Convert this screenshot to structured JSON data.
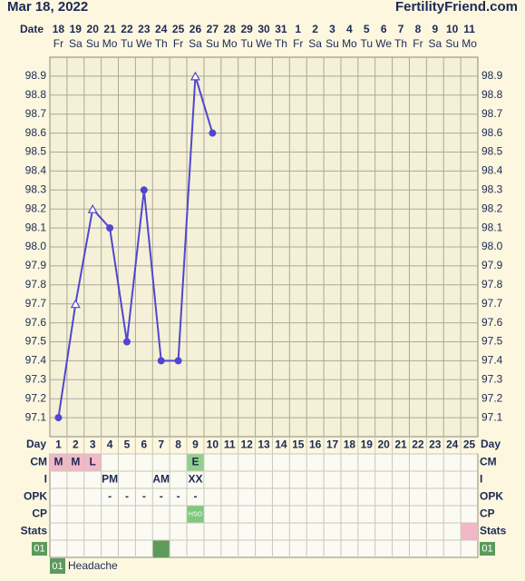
{
  "header": {
    "date": "Mar 18, 2022",
    "site": "FertilityFriend.com"
  },
  "chart_data": {
    "type": "line",
    "date_label": "Date",
    "categories": [
      "18",
      "19",
      "20",
      "21",
      "22",
      "23",
      "24",
      "25",
      "26",
      "27",
      "28",
      "29",
      "30",
      "31",
      "1",
      "2",
      "3",
      "4",
      "5",
      "6",
      "7",
      "8",
      "9",
      "10",
      "11"
    ],
    "weekdays": [
      "Fr",
      "Sa",
      "Su",
      "Mo",
      "Tu",
      "We",
      "Th",
      "Fr",
      "Sa",
      "Su",
      "Mo",
      "Tu",
      "We",
      "Th",
      "Fr",
      "Sa",
      "Su",
      "Mo",
      "Tu",
      "We",
      "Th",
      "Fr",
      "Sa",
      "Su",
      "Mo"
    ],
    "values": [
      97.1,
      97.7,
      98.2,
      98.1,
      97.5,
      98.3,
      97.4,
      97.4,
      98.9,
      98.6,
      null,
      null,
      null,
      null,
      null,
      null,
      null,
      null,
      null,
      null,
      null,
      null,
      null,
      null,
      null
    ],
    "markers": [
      "dot",
      "triangle",
      "triangle",
      "dot",
      "dot",
      "dot",
      "dot",
      "dot",
      "triangle",
      "dot",
      null,
      null,
      null,
      null,
      null,
      null,
      null,
      null,
      null,
      null,
      null,
      null,
      null,
      null,
      null
    ],
    "color": "#5146d0",
    "ylim": [
      97.0,
      99.0
    ],
    "yticks": [
      97.1,
      97.2,
      97.3,
      97.4,
      97.5,
      97.6,
      97.7,
      97.8,
      97.9,
      {
        "value": 98,
        "label": "98.0"
      },
      98.1,
      98.2,
      98.3,
      98.4,
      98.5,
      98.6,
      98.7,
      98.8,
      98.9
    ],
    "grid": true
  },
  "table": {
    "day_label": "Day",
    "days": [
      1,
      2,
      3,
      4,
      5,
      6,
      7,
      8,
      9,
      10,
      11,
      12,
      13,
      14,
      15,
      16,
      17,
      18,
      19,
      20,
      21,
      22,
      23,
      24,
      25
    ],
    "rows": [
      {
        "label": "CM",
        "cells": [
          {
            "text": "M",
            "color": "#f2b8c8"
          },
          {
            "text": "M",
            "color": "#f2b8c8"
          },
          {
            "text": "L",
            "color": "#f2b8c8"
          },
          null,
          null,
          null,
          null,
          null,
          {
            "text": "E",
            "color": "#8fd08f"
          },
          null,
          null,
          null,
          null,
          null,
          null,
          null,
          null,
          null,
          null,
          null,
          null,
          null,
          null,
          null,
          null
        ]
      },
      {
        "label": "I",
        "cells": [
          null,
          null,
          null,
          {
            "text": "PM"
          },
          null,
          null,
          {
            "text": "AM"
          },
          null,
          {
            "text": "XX"
          },
          null,
          null,
          null,
          null,
          null,
          null,
          null,
          null,
          null,
          null,
          null,
          null,
          null,
          null,
          null,
          null
        ]
      },
      {
        "label": "OPK",
        "cells": [
          null,
          null,
          null,
          {
            "text": "-"
          },
          {
            "text": "-"
          },
          {
            "text": "-"
          },
          {
            "text": "-"
          },
          {
            "text": "-"
          },
          {
            "text": "-"
          },
          null,
          null,
          null,
          null,
          null,
          null,
          null,
          null,
          null,
          null,
          null,
          null,
          null,
          null,
          null,
          null
        ]
      },
      {
        "label": "CP",
        "cells": [
          null,
          null,
          null,
          null,
          null,
          null,
          null,
          null,
          {
            "text": "HSO",
            "color": "#7fc87f",
            "small": true
          },
          null,
          null,
          null,
          null,
          null,
          null,
          null,
          null,
          null,
          null,
          null,
          null,
          null,
          null,
          null,
          null
        ]
      },
      {
        "label": "Stats",
        "cells": [
          null,
          null,
          null,
          null,
          null,
          null,
          null,
          null,
          null,
          null,
          null,
          null,
          null,
          null,
          null,
          null,
          null,
          null,
          null,
          null,
          null,
          null,
          null,
          null,
          {
            "color": "#f2b8c8"
          }
        ]
      },
      {
        "label": "01",
        "code": true,
        "cells": [
          null,
          null,
          null,
          null,
          null,
          null,
          {
            "color": "#5d9a5d"
          },
          null,
          null,
          null,
          null,
          null,
          null,
          null,
          null,
          null,
          null,
          null,
          null,
          null,
          null,
          null,
          null,
          null,
          null
        ]
      }
    ]
  },
  "legend": {
    "code": "01",
    "label": "Headache"
  }
}
